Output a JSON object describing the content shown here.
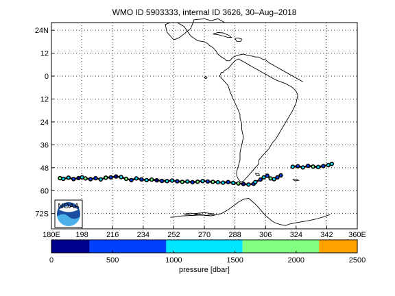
{
  "title": "WMO ID 5903333, internal ID 3626, 30–Aug–2018",
  "map": {
    "lon_range": [
      180,
      360
    ],
    "lat_range": [
      -80,
      28
    ],
    "x_ticks": [
      180,
      198,
      216,
      234,
      252,
      270,
      288,
      306,
      324,
      342,
      360
    ],
    "x_tick_labels": [
      "180E",
      "198",
      "216",
      "234",
      "252",
      "270",
      "288",
      "306",
      "324",
      "342",
      "360E"
    ],
    "y_ticks": [
      24,
      12,
      0,
      -12,
      -24,
      -36,
      -48,
      -60,
      -72
    ],
    "y_tick_labels": [
      "24N",
      "12",
      "0",
      "12",
      "24",
      "36",
      "48",
      "60",
      "72S"
    ],
    "grid": "dotted",
    "logo": "noaa-logo",
    "logo_text": "NOAA",
    "colors": {
      "coast": "#000000",
      "track_marker": "#000000",
      "grid": "#000000"
    }
  },
  "trajectory": {
    "note_colors": "points colored by pressure",
    "segments": [
      {
        "lon": [
          185,
          187,
          190,
          193,
          196,
          198,
          200,
          203,
          206,
          209,
          212,
          215,
          218,
          221,
          224,
          227,
          230,
          233,
          236,
          239,
          242,
          245,
          248,
          251,
          254,
          257,
          260,
          263,
          266,
          269,
          272,
          275,
          278,
          281,
          284,
          287,
          290,
          293,
          296,
          299
        ],
        "lat": [
          -53.5,
          -53.8,
          -53.2,
          -53.9,
          -53.4,
          -53.0,
          -53.6,
          -54.0,
          -53.5,
          -54.1,
          -53.2,
          -53.0,
          -52.6,
          -52.9,
          -53.8,
          -54.5,
          -53.6,
          -54.1,
          -54.5,
          -54.2,
          -54.6,
          -54.9,
          -55.0,
          -54.7,
          -55.1,
          -55.4,
          -55.2,
          -55.6,
          -55.3,
          -55.0,
          -55.2,
          -55.4,
          -55.6,
          -55.8,
          -55.5,
          -55.9,
          -56.2,
          -56.5,
          -56.8,
          -56.4
        ],
        "pressure": [
          1800,
          1000,
          1200,
          600,
          200,
          1500,
          1800,
          900,
          400,
          1300,
          1600,
          700,
          300,
          1100,
          1900,
          800,
          1200,
          500,
          1400,
          1700,
          250,
          900,
          1000,
          1500,
          600,
          1800,
          1200,
          700,
          1600,
          1300,
          400,
          1900,
          1000,
          1500,
          800,
          1100,
          1700,
          300,
          1200,
          600
        ]
      },
      {
        "lon": [
          300,
          303,
          305,
          307,
          309,
          311,
          313,
          315
        ],
        "lat": [
          -55.5,
          -54.2,
          -53.0,
          -52.2,
          -53.6,
          -54.0,
          -53.0,
          -52.0
        ],
        "pressure": [
          1500,
          800,
          1200,
          600,
          1700,
          1000,
          400,
          900
        ]
      },
      {
        "lon": [
          322,
          325,
          328,
          331,
          334,
          337,
          340,
          343,
          345
        ],
        "lat": [
          -47.5,
          -47.2,
          -47.8,
          -47.0,
          -47.4,
          -47.6,
          -47.1,
          -46.6,
          -46.0
        ],
        "pressure": [
          1500,
          900,
          1300,
          600,
          1800,
          1100,
          700,
          1400,
          1000
        ]
      }
    ]
  },
  "colorbar": {
    "label": "pressure [dbar]",
    "ticks": [
      0,
      500,
      1000,
      1500,
      2000,
      2500
    ],
    "range": [
      0,
      2500
    ],
    "bands": [
      {
        "from": 0,
        "to": 312,
        "color": "#00008f"
      },
      {
        "from": 312,
        "to": 938,
        "color": "#0040ff"
      },
      {
        "from": 938,
        "to": 1562,
        "color": "#00e5ff"
      },
      {
        "from": 1562,
        "to": 2188,
        "color": "#80ff80"
      },
      {
        "from": 2188,
        "to": 2500,
        "color": "#ffa000"
      }
    ]
  },
  "coasts": [
    {
      "name": "north-america-coast",
      "lon": [
        287,
        282,
        278,
        274,
        270,
        264,
        262,
        258,
        255,
        252,
        250,
        248,
        247,
        250,
        254,
        258,
        262,
        266,
        270,
        272,
        273,
        275,
        277,
        278,
        280,
        282,
        283,
        285,
        287,
        290,
        293,
        295,
        298,
        300,
        302,
        304,
        306,
        308,
        310,
        312,
        316,
        320,
        324,
        328
      ],
      "lat": [
        28,
        28,
        30,
        29,
        30,
        29.5,
        25,
        22,
        20,
        19,
        21,
        23,
        27,
        28,
        28,
        26,
        21,
        18.5,
        18,
        17,
        16,
        15,
        13,
        11.5,
        10,
        9,
        8,
        8,
        10,
        11,
        11.5,
        11,
        10.5,
        10,
        10,
        9,
        8.5,
        7,
        6,
        5,
        3,
        1,
        -1,
        -3
      ]
    },
    {
      "name": "south-america-coast",
      "lon": [
        280,
        279,
        280,
        282,
        283,
        284,
        285,
        286,
        287,
        288,
        289,
        290,
        291,
        291,
        292,
        292,
        293,
        292,
        291,
        291,
        290,
        289,
        289,
        290,
        291,
        292,
        293,
        294,
        295,
        296,
        297,
        298,
        300,
        302,
        302,
        304,
        306,
        308,
        310,
        312,
        314,
        316,
        318,
        320,
        322,
        324,
        325,
        324,
        322,
        320,
        318,
        315,
        312,
        310,
        308,
        306,
        304,
        302,
        300,
        298,
        296,
        294,
        292,
        290,
        288,
        286,
        284,
        282,
        281,
        280
      ],
      "lat": [
        2,
        0,
        -1,
        -3,
        -4,
        -5,
        -8,
        -10,
        -12,
        -14,
        -16,
        -18,
        -20,
        -22,
        -25,
        -28,
        -32,
        -36,
        -40,
        -44,
        -47,
        -50,
        -52,
        -54,
        -55,
        -55.5,
        -55,
        -54,
        -53,
        -52,
        -51,
        -50,
        -48,
        -46,
        -44,
        -42,
        -40,
        -38,
        -35,
        -33,
        -30,
        -27,
        -24,
        -21,
        -18,
        -14,
        -10,
        -8,
        -6,
        -5,
        -4,
        -3,
        -2,
        -1,
        0,
        1,
        2,
        3,
        4,
        5,
        6,
        7,
        8,
        9,
        8,
        6,
        4,
        3,
        2,
        2
      ]
    },
    {
      "name": "cuba-island",
      "lon": [
        275,
        278,
        281,
        284,
        286,
        284,
        281,
        278,
        275
      ],
      "lat": [
        22,
        22.8,
        22.6,
        21.5,
        20.3,
        20.2,
        21,
        21.7,
        22
      ]
    },
    {
      "name": "hispaniola-island",
      "lon": [
        288,
        290,
        292,
        291.5,
        289,
        288
      ],
      "lat": [
        19.8,
        19.9,
        19.4,
        18.2,
        18.2,
        19.8
      ]
    },
    {
      "name": "falkland-islands",
      "lon": [
        300,
        302,
        302.5,
        301,
        300
      ],
      "lat": [
        -51,
        -51,
        -52,
        -52.3,
        -51
      ]
    },
    {
      "name": "galapagos-islands",
      "lon": [
        270,
        271,
        271.5,
        270.5,
        270
      ],
      "lat": [
        -0.5,
        -0.2,
        -1,
        -1.3,
        -0.5
      ]
    },
    {
      "name": "antarctic-peninsula",
      "lon": [
        250,
        256,
        262,
        268,
        274,
        280,
        284,
        287,
        290,
        293,
        296,
        298,
        300,
        302,
        304,
        306,
        308,
        310,
        312,
        315,
        318,
        320,
        324,
        328,
        332,
        336,
        340,
        344
      ],
      "lat": [
        -74,
        -73.3,
        -73,
        -72.8,
        -73.2,
        -72,
        -70,
        -68,
        -66,
        -64.5,
        -64,
        -65.5,
        -67,
        -69,
        -71,
        -73,
        -74.5,
        -76,
        -77,
        -77.8,
        -78.2,
        -77.5,
        -76.8,
        -76.2,
        -75.6,
        -74.8,
        -73.8,
        -72.5
      ]
    },
    {
      "name": "antarctic-island-west",
      "lon": [
        258,
        262,
        266,
        263,
        258
      ],
      "lat": [
        -72.2,
        -71.8,
        -72.4,
        -73,
        -72.2
      ]
    },
    {
      "name": "antarctic-island-mid",
      "lon": [
        264,
        270,
        276,
        271,
        264
      ],
      "lat": [
        -72,
        -71.5,
        -72.2,
        -73,
        -72
      ]
    },
    {
      "name": "south-georgia",
      "lon": [
        322,
        324,
        325.5,
        323.5,
        322
      ],
      "lat": [
        -54.2,
        -54,
        -54.6,
        -54.9,
        -54.2
      ]
    }
  ]
}
